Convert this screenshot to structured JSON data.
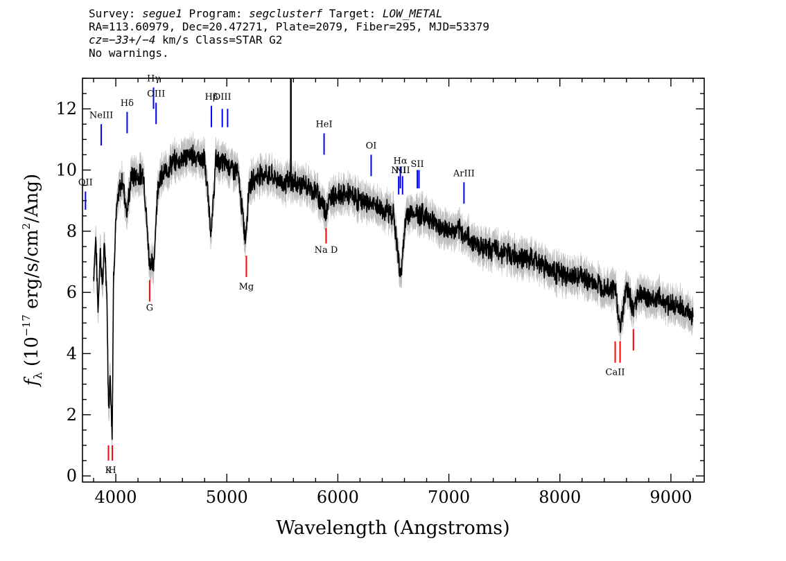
{
  "header": {
    "line1": {
      "survey_label": "Survey: ",
      "survey": "segue1",
      "program_label": " Program: ",
      "program": "segclusterf",
      "target_label": " Target: ",
      "target": "LOW_METAL"
    },
    "line2": "RA=113.60979, Dec=20.47271, Plate=2079, Fiber=295, MJD=53379",
    "line3": {
      "cz_label": "cz=",
      "cz_value": "−33+/−4",
      "cz_rest": " km/s Class=STAR G2"
    },
    "line4": "No warnings."
  },
  "chart_data": {
    "type": "line",
    "xlabel": "Wavelength (Angstroms)",
    "ylabel_symbol": "f",
    "ylabel_sub": "λ",
    "ylabel_pre": " (10",
    "ylabel_exp": "−17",
    "ylabel_post": " erg/s/cm",
    "ylabel_exp2": "2",
    "ylabel_end": "/Ang)",
    "xlim": [
      3700,
      9300
    ],
    "ylim": [
      -0.2,
      13.0
    ],
    "xticks": [
      4000,
      5000,
      6000,
      7000,
      8000,
      9000
    ],
    "xtick_labels": [
      "4000",
      "5000",
      "6000",
      "7000",
      "8000",
      "9000"
    ],
    "xminor_step": 200,
    "yticks": [
      0,
      2,
      4,
      6,
      8,
      10,
      12
    ],
    "ytick_labels": [
      "0",
      "2",
      "4",
      "6",
      "8",
      "10",
      "12"
    ],
    "yminor_step": 0.5,
    "colors": {
      "flux": "#000000",
      "error": "#bebebe",
      "emission": "#0000ff",
      "absorption": "#ff0000"
    },
    "spectrum_nodes": [
      [
        3800,
        6.5
      ],
      [
        3820,
        7.8
      ],
      [
        3840,
        5.4
      ],
      [
        3860,
        7.4
      ],
      [
        3880,
        6.2
      ],
      [
        3900,
        7.6
      ],
      [
        3920,
        5.9
      ],
      [
        3935,
        2.1
      ],
      [
        3950,
        3.4
      ],
      [
        3968,
        1.3
      ],
      [
        3980,
        6.5
      ],
      [
        4000,
        8.4
      ],
      [
        4030,
        9.3
      ],
      [
        4060,
        9.7
      ],
      [
        4100,
        8.6
      ],
      [
        4140,
        9.8
      ],
      [
        4200,
        9.8
      ],
      [
        4250,
        9.9
      ],
      [
        4300,
        7.1
      ],
      [
        4340,
        6.8
      ],
      [
        4380,
        9.6
      ],
      [
        4420,
        9.8
      ],
      [
        4500,
        10.2
      ],
      [
        4600,
        10.4
      ],
      [
        4700,
        10.5
      ],
      [
        4800,
        10.3
      ],
      [
        4861,
        7.9
      ],
      [
        4900,
        10.3
      ],
      [
        5000,
        10.2
      ],
      [
        5100,
        9.9
      ],
      [
        5167,
        7.7
      ],
      [
        5200,
        9.5
      ],
      [
        5300,
        9.9
      ],
      [
        5400,
        9.8
      ],
      [
        5500,
        9.6
      ],
      [
        5600,
        9.6
      ],
      [
        5700,
        9.5
      ],
      [
        5800,
        9.3
      ],
      [
        5890,
        8.7
      ],
      [
        5950,
        9.2
      ],
      [
        6100,
        9.2
      ],
      [
        6200,
        9.0
      ],
      [
        6300,
        8.9
      ],
      [
        6400,
        8.7
      ],
      [
        6500,
        8.6
      ],
      [
        6563,
        6.5
      ],
      [
        6620,
        8.6
      ],
      [
        6700,
        8.6
      ],
      [
        6800,
        8.5
      ],
      [
        6900,
        8.2
      ],
      [
        7000,
        8.0
      ],
      [
        7100,
        8.0
      ],
      [
        7200,
        7.7
      ],
      [
        7300,
        7.5
      ],
      [
        7400,
        7.4
      ],
      [
        7500,
        7.3
      ],
      [
        7600,
        7.2
      ],
      [
        7700,
        7.1
      ],
      [
        7800,
        7.0
      ],
      [
        7900,
        6.8
      ],
      [
        8000,
        6.6
      ],
      [
        8100,
        6.5
      ],
      [
        8200,
        6.5
      ],
      [
        8300,
        6.3
      ],
      [
        8400,
        6.2
      ],
      [
        8500,
        6.1
      ],
      [
        8542,
        4.8
      ],
      [
        8600,
        6.2
      ],
      [
        8662,
        5.4
      ],
      [
        8700,
        6.0
      ],
      [
        8800,
        5.8
      ],
      [
        8900,
        5.8
      ],
      [
        9000,
        5.6
      ],
      [
        9100,
        5.5
      ],
      [
        9200,
        5.2
      ]
    ],
    "noise_amplitude": 0.28,
    "error_band_width": 0.35,
    "spike": {
      "x": 5577,
      "ymax": 13.0
    },
    "emission_lines": [
      {
        "label": "OII",
        "x": 3727,
        "y0": 8.7,
        "y1": 9.3,
        "label_y": 9.5
      },
      {
        "label": "NeIII",
        "x": 3869,
        "y0": 10.8,
        "y1": 11.5,
        "label_y": 11.7
      },
      {
        "label": "Hδ",
        "x": 4102,
        "y0": 11.2,
        "y1": 11.9,
        "label_y": 12.1
      },
      {
        "label": "Hγ",
        "x": 4340,
        "y0": 12.0,
        "y1": 12.7,
        "label_y": 12.9
      },
      {
        "label": "OIII",
        "x": 4363,
        "y0": 11.5,
        "y1": 12.2,
        "label_y": 12.4
      },
      {
        "label": "Hβ",
        "x": 4861,
        "y0": 11.4,
        "y1": 12.1,
        "label_y": 12.3
      },
      {
        "label": "OIII",
        "x": 4959,
        "y0": 11.4,
        "y1": 12.0,
        "label_y": 12.3
      },
      {
        "label": "",
        "x": 5007,
        "y0": 11.4,
        "y1": 12.0,
        "label_y": 12.3
      },
      {
        "label": "HeI",
        "x": 5876,
        "y0": 10.5,
        "y1": 11.2,
        "label_y": 11.4
      },
      {
        "label": "OI",
        "x": 6300,
        "y0": 9.8,
        "y1": 10.5,
        "label_y": 10.7
      },
      {
        "label": "NII",
        "x": 6548,
        "y0": 9.2,
        "y1": 9.8,
        "label_y": 9.9
      },
      {
        "label": "Hα",
        "x": 6563,
        "y0": 9.4,
        "y1": 10.1,
        "label_y": 10.2
      },
      {
        "label": "NII",
        "x": 6583,
        "y0": 9.2,
        "y1": 9.8,
        "label_y": 9.9
      },
      {
        "label": "SII",
        "x": 6716,
        "y0": 9.4,
        "y1": 10.0,
        "label_y": 10.1
      },
      {
        "label": "",
        "x": 6731,
        "y0": 9.4,
        "y1": 10.0,
        "label_y": 10.1
      },
      {
        "label": "ArIII",
        "x": 7136,
        "y0": 8.9,
        "y1": 9.6,
        "label_y": 9.8
      }
    ],
    "absorption_lines": [
      {
        "label": "K",
        "x": 3934,
        "y0": 0.5,
        "y1": 1.0,
        "label_y": 0.1
      },
      {
        "label": "H",
        "x": 3969,
        "y0": 0.5,
        "y1": 1.0,
        "label_y": 0.1
      },
      {
        "label": "G",
        "x": 4305,
        "y0": 5.7,
        "y1": 6.4,
        "label_y": 5.4
      },
      {
        "label": "Mg",
        "x": 5176,
        "y0": 6.5,
        "y1": 7.2,
        "label_y": 6.1
      },
      {
        "label": "Na D",
        "x": 5894,
        "y0": 7.6,
        "y1": 8.1,
        "label_y": 7.3
      },
      {
        "label": "CaII",
        "x": 8498,
        "y0": 3.7,
        "y1": 4.4,
        "label_y": 3.3
      },
      {
        "label": "",
        "x": 8542,
        "y0": 3.7,
        "y1": 4.4,
        "label_y": 3.3
      },
      {
        "label": "",
        "x": 8662,
        "y0": 4.1,
        "y1": 4.8,
        "label_y": 3.3
      }
    ]
  }
}
